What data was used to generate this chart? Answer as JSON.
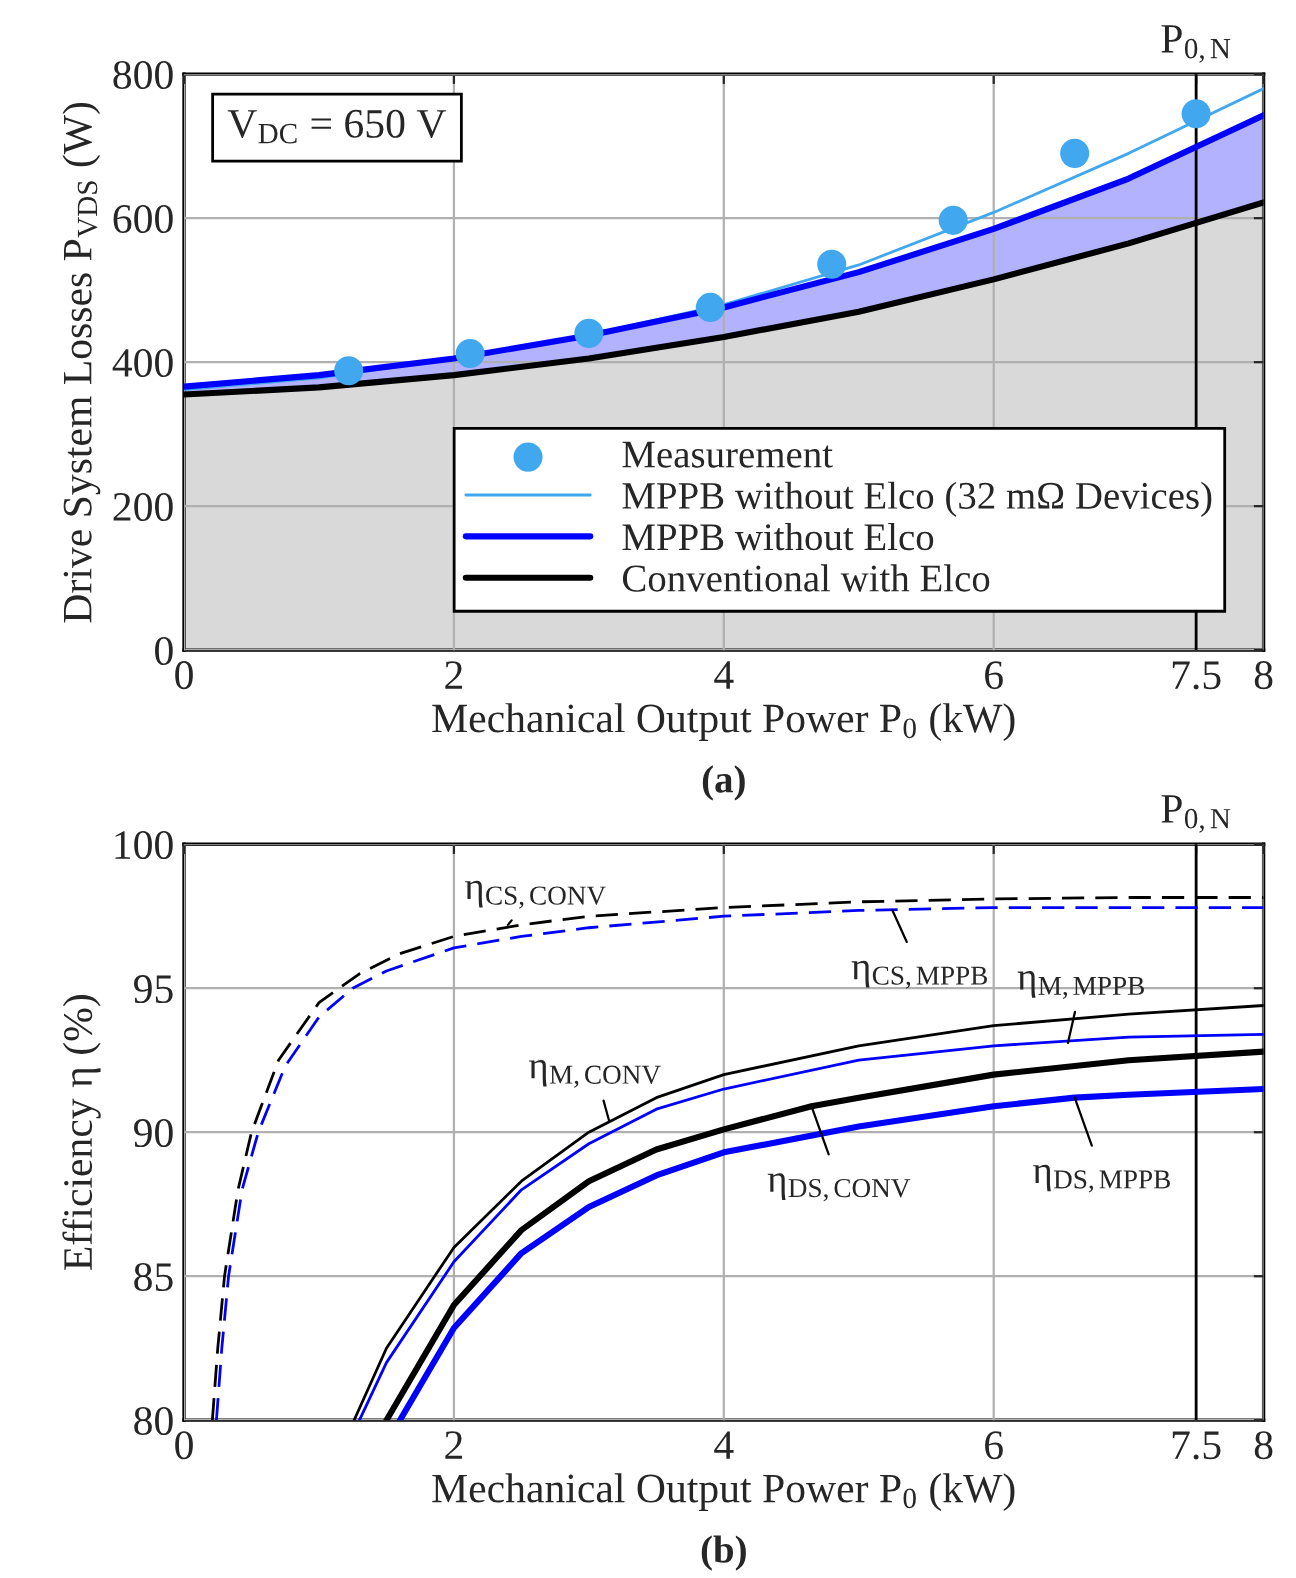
{
  "chart_data": [
    {
      "type": "line",
      "xlabel": "Mechanical Output Power P$_{0}$ (kW)",
      "ylabel": "Drive System Losses P$_{VDS}$ (W)",
      "xlim": [
        0,
        8
      ],
      "xticks": [
        0,
        2,
        4,
        6,
        7.5,
        8
      ],
      "ylim": [
        0,
        800
      ],
      "yticks": [
        0,
        200,
        400,
        600,
        800
      ],
      "grid": true,
      "legend": "bottom right",
      "x": [
        0,
        1,
        2,
        3,
        4,
        5,
        6,
        7,
        8
      ],
      "series": [
        {
          "type": "scatter",
          "name": "Measurement",
          "color": "#41a8f0",
          "marker": "circle",
          "x": [
            1.22,
            2.12,
            3.0,
            3.9,
            4.8,
            5.7,
            6.6,
            7.5
          ],
          "values": [
            388,
            412,
            440,
            476,
            536,
            597,
            690,
            745
          ]
        },
        {
          "type": "line",
          "name": "MPPB without Elco (32 mΩ Devices)",
          "color": "#41a8f0",
          "values": [
            362,
            378,
            405,
            438,
            480,
            535,
            608,
            690,
            780
          ]
        },
        {
          "type": "line",
          "name": "MPPB without Elco",
          "color": "#0000ff",
          "values": [
            366,
            382,
            405,
            437,
            476,
            525,
            585,
            655,
            743
          ],
          "lower": [
            355,
            365,
            382,
            405,
            435,
            470,
            515,
            565,
            622
          ],
          "upper": [
            366,
            382,
            405,
            437,
            476,
            525,
            585,
            655,
            743
          ]
        },
        {
          "type": "area",
          "name": "Conventional with Elco",
          "color": "#000000",
          "values": [
            355,
            365,
            382,
            405,
            435,
            470,
            515,
            565,
            622
          ]
        }
      ],
      "ref_lines": [
        {
          "axis": "x",
          "value": 7.5,
          "label": "P$_{0,N}$",
          "color": "#000000"
        }
      ],
      "annotations": [
        "V$_{DC}$ = 650 V",
        "(a)"
      ]
    },
    {
      "type": "line",
      "xlabel": "Mechanical Output Power P$_{0}$ (kW)",
      "ylabel": "Efficiency η (%)",
      "xlim": [
        0,
        8
      ],
      "xticks": [
        0,
        2,
        4,
        6,
        7.5,
        8
      ],
      "ylim": [
        80,
        100
      ],
      "yticks": [
        80,
        85,
        90,
        95,
        100
      ],
      "grid": true,
      "series": [
        {
          "color": "#000000",
          "line_style": "dashed",
          "x": [
            0.21,
            0.25,
            0.3,
            0.4,
            0.5,
            0.7,
            1.0,
            1.3,
            1.6,
            2,
            2.5,
            3,
            4,
            5,
            6,
            7,
            8
          ],
          "values": [
            80,
            82.5,
            85,
            88,
            90,
            92.5,
            94.5,
            95.5,
            96.2,
            96.8,
            97.2,
            97.5,
            97.8,
            98.0,
            98.1,
            98.15,
            98.15
          ]
        },
        {
          "color": "#0000ff",
          "line_style": "dashed",
          "x": [
            0.24,
            0.28,
            0.33,
            0.43,
            0.55,
            0.75,
            1.0,
            1.25,
            1.5,
            2,
            2.5,
            3,
            4,
            5,
            6,
            7,
            8
          ],
          "values": [
            80,
            82.5,
            85,
            88,
            90,
            92.3,
            94,
            95,
            95.6,
            96.4,
            96.8,
            97.1,
            97.5,
            97.7,
            97.8,
            97.8,
            97.8
          ]
        },
        {
          "color": "#000000",
          "x": [
            1.26,
            1.5,
            2,
            2.5,
            3,
            3.5,
            4,
            5,
            6,
            7,
            8
          ],
          "values": [
            80,
            82.5,
            86,
            88.3,
            90,
            91.2,
            92,
            93,
            93.7,
            94.1,
            94.4
          ]
        },
        {
          "color": "#0000ff",
          "x": [
            1.3,
            1.5,
            2,
            2.5,
            3,
            3.5,
            4,
            5,
            6,
            7,
            8
          ],
          "values": [
            80,
            82,
            85.5,
            88,
            89.6,
            90.8,
            91.5,
            92.5,
            93,
            93.3,
            93.4
          ]
        },
        {
          "color": "#000000",
          "x": [
            1.5,
            2,
            2.5,
            3,
            3.5,
            4,
            4.65,
            5,
            6,
            7,
            8
          ],
          "values": [
            80,
            84,
            86.6,
            88.3,
            89.4,
            90.1,
            90.9,
            91.2,
            92,
            92.5,
            92.8
          ]
        },
        {
          "color": "#0000ff",
          "x": [
            1.6,
            2,
            2.5,
            3,
            3.5,
            4,
            5,
            6,
            6.6,
            7,
            8
          ],
          "values": [
            80,
            83.2,
            85.8,
            87.4,
            88.5,
            89.3,
            90.2,
            90.9,
            91.2,
            91.3,
            91.5
          ]
        }
      ],
      "ref_lines": [
        {
          "axis": "x",
          "value": 7.5,
          "label": "P$_{0,N}$",
          "color": "#000000"
        }
      ],
      "annotations": [
        {
          "text": "η$_{CS,CONV}$",
          "x": 2.4,
          "y": 97.2
        },
        {
          "text": "η$_{CS,MPPB}$",
          "x": 5.25,
          "y": 97.7
        },
        {
          "text": "η$_{M,MPPB}$",
          "x": 6.55,
          "y": 93.1
        },
        {
          "text": "η$_{M,CONV}$",
          "x": 3.15,
          "y": 90.4
        },
        {
          "text": "η$_{DS,CONV}$",
          "x": 4.65,
          "y": 90.9
        },
        {
          "text": "η$_{DS,MPPB}$",
          "x": 6.6,
          "y": 91.2
        },
        "(b)"
      ]
    }
  ]
}
